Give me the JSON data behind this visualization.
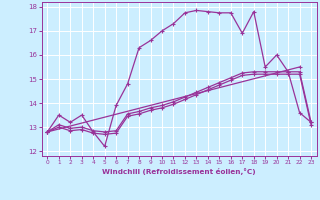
{
  "xlabel": "Windchill (Refroidissement éolien,°C)",
  "bg_color": "#cceeff",
  "line_color": "#993399",
  "grid_color": "#ffffff",
  "xlim": [
    -0.5,
    23.5
  ],
  "ylim": [
    11.8,
    18.2
  ],
  "yticks": [
    12,
    13,
    14,
    15,
    16,
    17,
    18
  ],
  "xticks": [
    0,
    1,
    2,
    3,
    4,
    5,
    6,
    7,
    8,
    9,
    10,
    11,
    12,
    13,
    14,
    15,
    16,
    17,
    18,
    19,
    20,
    21,
    22,
    23
  ],
  "curve1_x": [
    0,
    1,
    2,
    3,
    4,
    5,
    6,
    7,
    8,
    9,
    10,
    11,
    12,
    13,
    14,
    15,
    16,
    17,
    18,
    19,
    20,
    21,
    22,
    23
  ],
  "curve1_y": [
    12.8,
    13.5,
    13.2,
    13.5,
    12.8,
    12.2,
    13.9,
    14.8,
    16.3,
    16.6,
    17.0,
    17.3,
    17.75,
    17.85,
    17.8,
    17.75,
    17.75,
    16.9,
    17.8,
    15.5,
    16.0,
    15.3,
    13.6,
    13.2
  ],
  "curve2_x": [
    0,
    22
  ],
  "curve2_y": [
    12.8,
    15.5
  ],
  "curve3_x": [
    0,
    1,
    2,
    3,
    4,
    5,
    6,
    7,
    8,
    9,
    10,
    11,
    12,
    13,
    14,
    15,
    16,
    17,
    18,
    19,
    20,
    21,
    22,
    23
  ],
  "curve3_y": [
    12.8,
    13.1,
    12.95,
    13.0,
    12.85,
    12.8,
    12.85,
    13.55,
    13.65,
    13.8,
    13.9,
    14.05,
    14.25,
    14.45,
    14.65,
    14.85,
    15.05,
    15.25,
    15.3,
    15.3,
    15.3,
    15.3,
    15.3,
    13.2
  ],
  "curve4_x": [
    0,
    1,
    2,
    3,
    4,
    5,
    6,
    7,
    8,
    9,
    10,
    11,
    12,
    13,
    14,
    15,
    16,
    17,
    18,
    19,
    20,
    21,
    22,
    23
  ],
  "curve4_y": [
    12.8,
    13.0,
    12.85,
    12.9,
    12.75,
    12.7,
    12.75,
    13.45,
    13.55,
    13.7,
    13.8,
    13.95,
    14.15,
    14.35,
    14.55,
    14.75,
    14.95,
    15.15,
    15.2,
    15.2,
    15.2,
    15.2,
    15.2,
    13.1
  ]
}
